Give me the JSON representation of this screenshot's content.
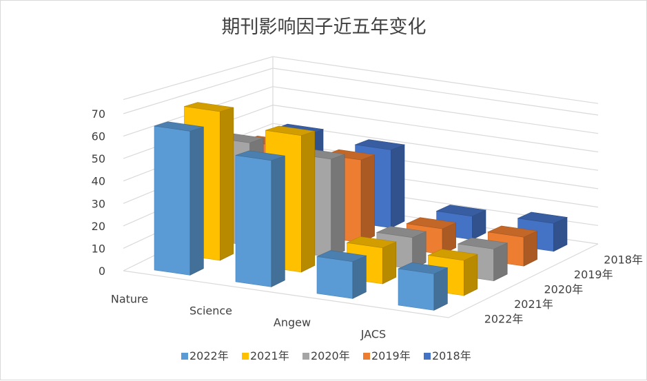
{
  "chart_data": {
    "type": "bar",
    "subtype": "3d-column",
    "title": "期刊影响因子近五年变化",
    "categories": [
      "Nature",
      "Science",
      "Angew",
      "JACS"
    ],
    "depth_categories": [
      "2022年",
      "2021年",
      "2020年",
      "2019年",
      "2018年"
    ],
    "series": [
      {
        "name": "2022年",
        "color": "#5b9bd5",
        "values": [
          64.8,
          56.9,
          16.6,
          16.4
        ]
      },
      {
        "name": "2021年",
        "color": "#ffc000",
        "values": [
          69.5,
          63.8,
          16.8,
          16.4
        ]
      },
      {
        "name": "2020年",
        "color": "#a5a5a5",
        "values": [
          49.9,
          47.7,
          15.3,
          15.4
        ]
      },
      {
        "name": "2019年",
        "color": "#ed7d31",
        "values": [
          42.8,
          41.8,
          12.9,
          14.6
        ]
      },
      {
        "name": "2018年",
        "color": "#4472c4",
        "values": [
          43.1,
          41.1,
          12.3,
          14.7
        ]
      }
    ],
    "y_ticks": [
      "0",
      "10",
      "20",
      "30",
      "40",
      "50",
      "60",
      "70"
    ],
    "ylim": [
      0,
      70
    ],
    "grid": true,
    "legend_position": "bottom"
  }
}
